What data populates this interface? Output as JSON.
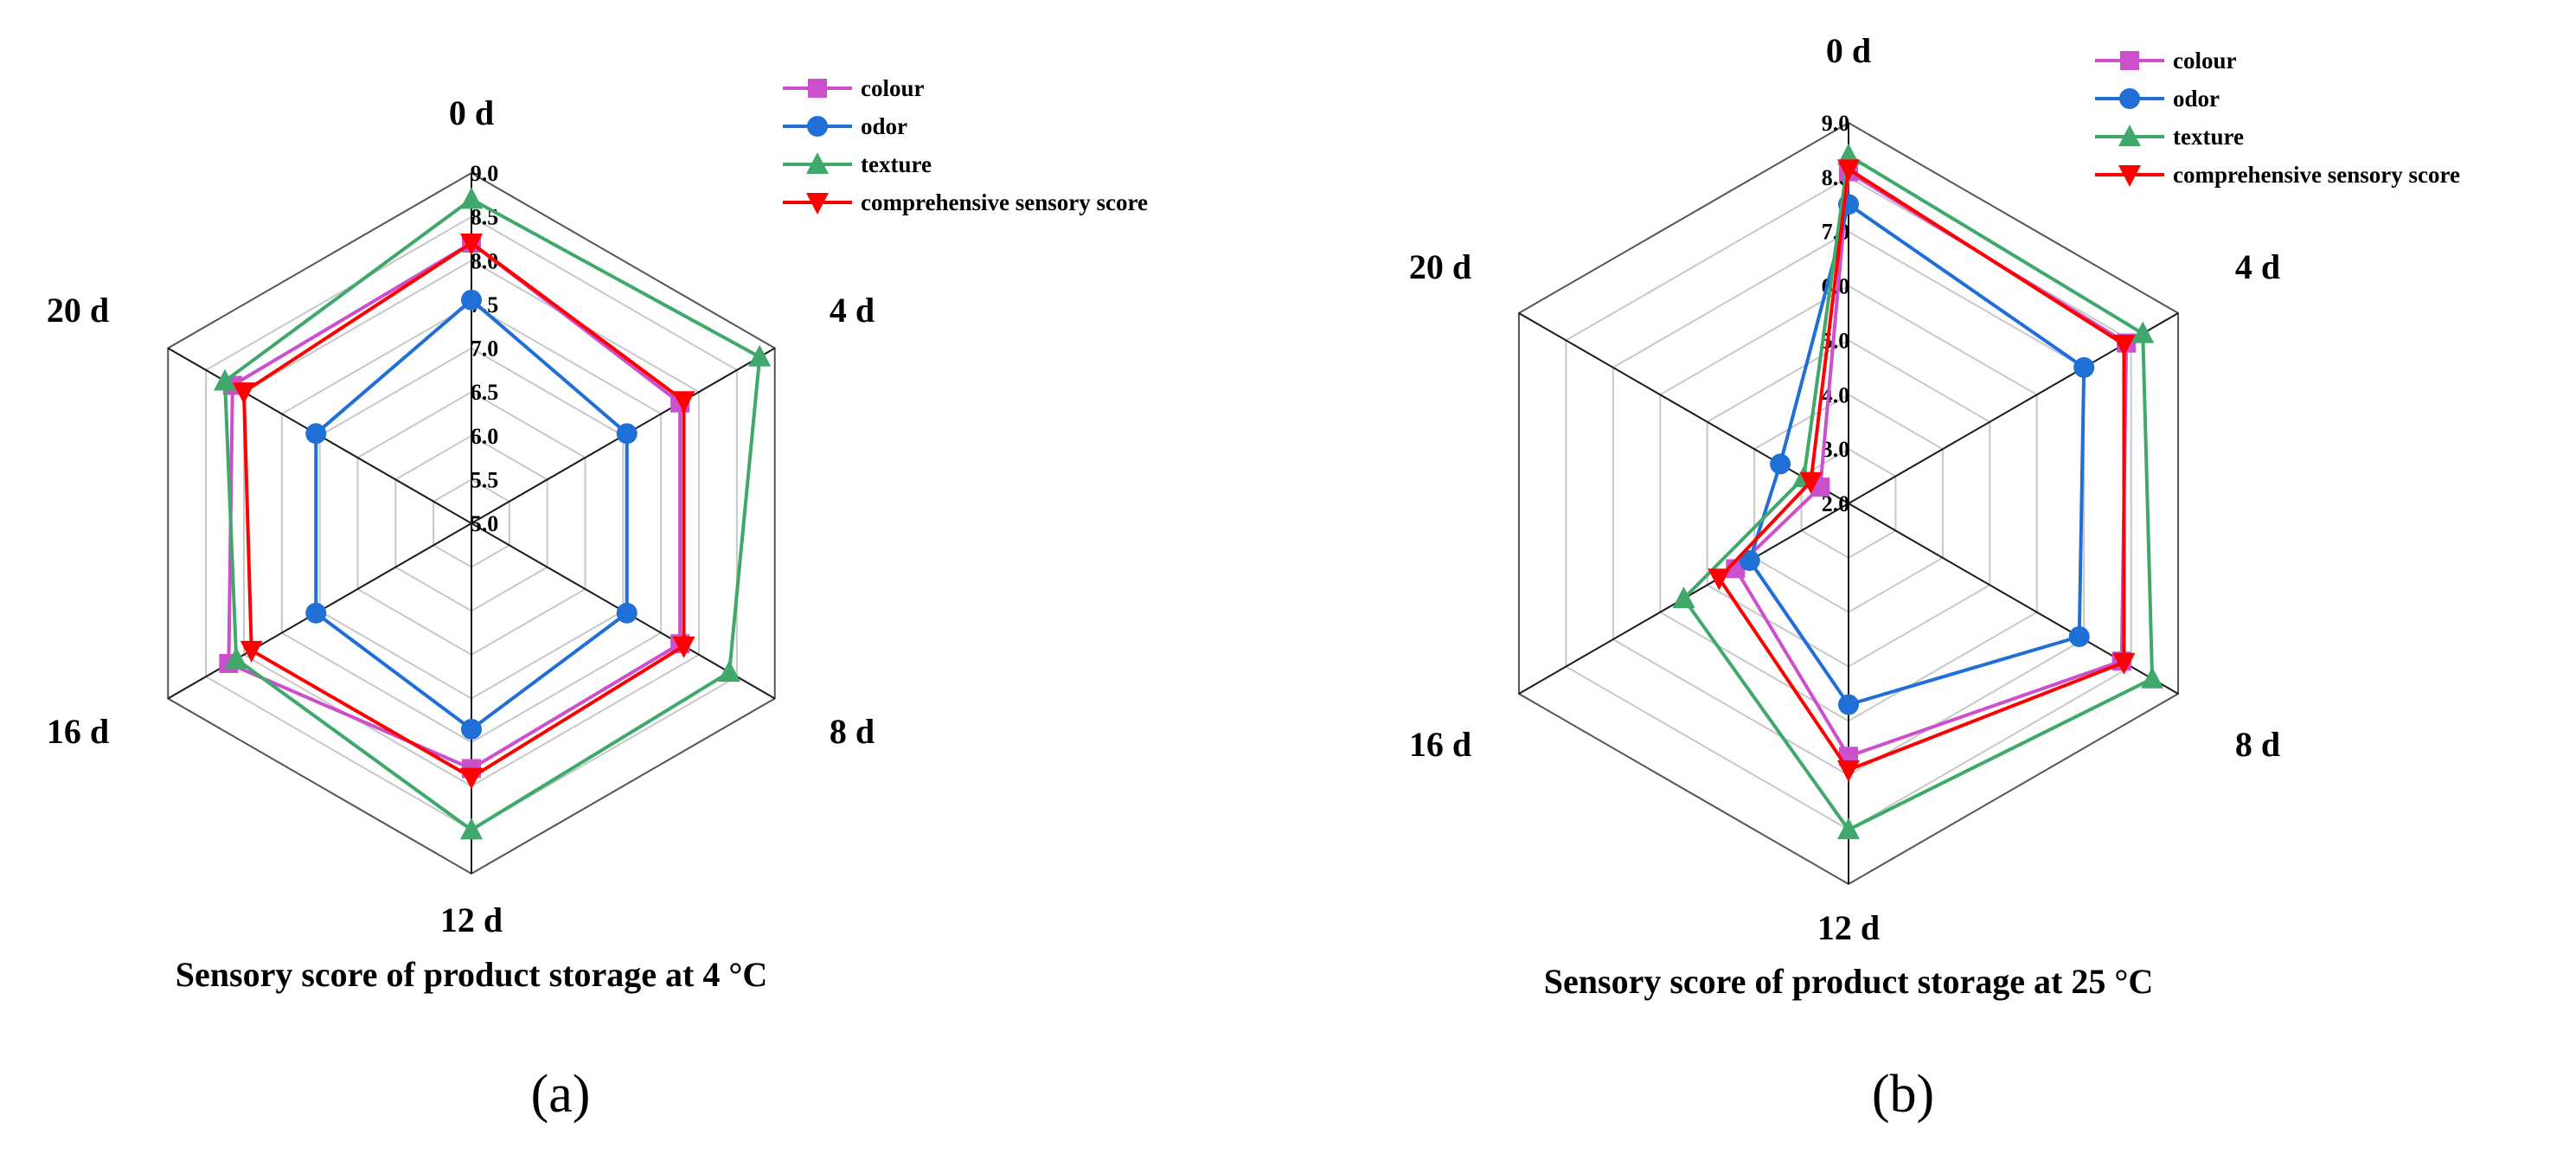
{
  "colors": {
    "colour": "#cc4fcc",
    "odor": "#1f6fd6",
    "texture": "#3fa86a",
    "comprehensive": "#ff0000",
    "grid": "#c8c8c8",
    "axis": "#1a1a1a"
  },
  "chart_data": [
    {
      "type": "radar",
      "panel_label": "(a)",
      "title": "Sensory score of product  storage at 4 °C",
      "categories": [
        "0 d",
        "4 d",
        "8 d",
        "12 d",
        "16 d",
        "20 d"
      ],
      "range": [
        5.0,
        9.0
      ],
      "ticks": [
        "5.0",
        "5.5",
        "6.0",
        "6.5",
        "7.0",
        "7.5",
        "8.0",
        "8.5",
        "9.0"
      ],
      "grid": true,
      "legend_position": "top-right",
      "series": [
        {
          "name": "colour",
          "marker": "square",
          "values": [
            8.2,
            7.75,
            7.75,
            7.8,
            8.2,
            8.15
          ]
        },
        {
          "name": "odor",
          "marker": "circle",
          "values": [
            7.55,
            7.05,
            7.05,
            7.35,
            7.05,
            7.05
          ]
        },
        {
          "name": "texture",
          "marker": "triangle-up",
          "values": [
            8.7,
            8.8,
            8.4,
            8.5,
            8.1,
            8.25
          ]
        },
        {
          "name": "comprehensive sensory score",
          "marker": "triangle-down",
          "values": [
            8.2,
            7.8,
            7.8,
            7.9,
            7.9,
            8.0
          ]
        }
      ]
    },
    {
      "type": "radar",
      "panel_label": "(b)",
      "title": "Sensory score of product  storage at 25 °C",
      "categories": [
        "0 d",
        "4 d",
        "8 d",
        "12 d",
        "16 d",
        "20 d"
      ],
      "range": [
        2.0,
        9.0
      ],
      "ticks": [
        "2.0",
        "3.0",
        "4.0",
        "5.0",
        "6.0",
        "7.0",
        "8.0",
        "9.0"
      ],
      "grid": true,
      "legend_position": "top-right",
      "series": [
        {
          "name": "colour",
          "marker": "square",
          "values": [
            8.1,
            7.9,
            7.8,
            6.65,
            4.4,
            2.6
          ]
        },
        {
          "name": "odor",
          "marker": "circle",
          "values": [
            7.5,
            7.0,
            6.9,
            5.7,
            4.1,
            3.45
          ]
        },
        {
          "name": "texture",
          "marker": "triangle-up",
          "values": [
            8.4,
            8.25,
            8.45,
            8.0,
            5.5,
            2.95
          ]
        },
        {
          "name": "comprehensive sensory score",
          "marker": "triangle-down",
          "values": [
            8.15,
            7.85,
            7.85,
            6.9,
            4.75,
            2.8
          ]
        }
      ]
    }
  ]
}
